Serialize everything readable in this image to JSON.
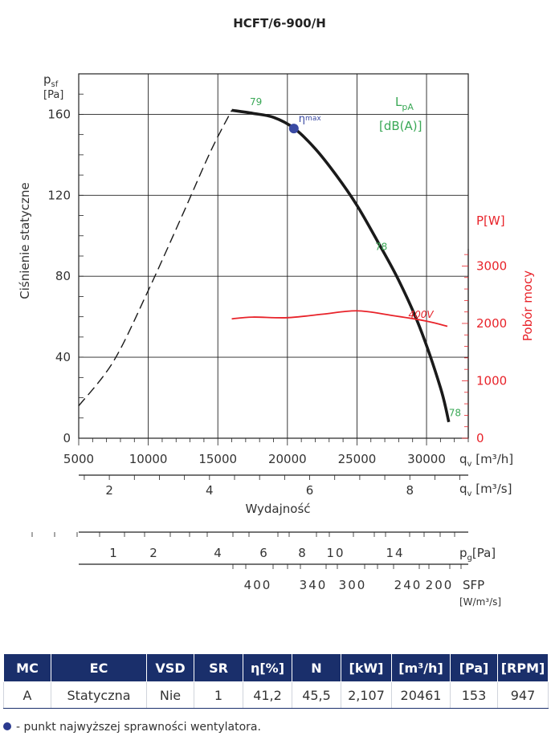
{
  "chart_data": {
    "type": "line",
    "title": "HCFT/6-900/H",
    "xlabel": "Wydajność",
    "ylabel": "Ciśnienie statyczne",
    "y2label": "Pobór mocy",
    "x_unit_h": "q",
    "x_unit_h_sub": "v",
    "x_unit_h_rest": " [m³/h]",
    "x_unit_s": "q",
    "x_unit_s_sub": "v",
    "x_unit_s_rest": " [m³/s]",
    "y_unit": "p",
    "y_unit_sub": "sf",
    "y_unit_rest": "[Pa]",
    "y2_unit": "P[W]",
    "sound_label": "L",
    "sound_label_sub": "pA",
    "sound_unit": "[dB(A)]",
    "eta_label": "η",
    "eta_sub": "max",
    "xlim": [
      5000,
      33000
    ],
    "ylim": [
      0,
      180
    ],
    "y2lim": [
      0,
      3300
    ],
    "x_ticks": [
      5000,
      10000,
      15000,
      20000,
      25000,
      30000
    ],
    "x_ticks_s": [
      2,
      4,
      6,
      8
    ],
    "y_ticks": [
      0,
      40,
      80,
      120,
      160
    ],
    "y2_ticks": [
      0,
      1000,
      2000,
      3000
    ],
    "series": [
      {
        "name": "Ciśnienie statyczne (praca)",
        "axis": "left",
        "style": "solid",
        "color": "#1a1a1a",
        "x": [
          16000,
          17500,
          19000,
          20500,
          22000,
          23500,
          25000,
          26500,
          28000,
          29500,
          31000,
          31600
        ],
        "y": [
          162,
          160.5,
          158.5,
          153,
          143,
          130,
          115,
          97,
          78,
          55,
          25,
          8
        ]
      },
      {
        "name": "Ciśnienie statyczne (niestabilna)",
        "axis": "left",
        "style": "dashed",
        "color": "#1a1a1a",
        "x": [
          5000,
          7500,
          10000,
          12500,
          14500,
          16000
        ],
        "y": [
          16,
          38,
          73,
          111,
          142,
          162
        ]
      },
      {
        "name": "400V",
        "axis": "right",
        "style": "solid",
        "color": "#e8232a",
        "x": [
          16000,
          17500,
          20000,
          22500,
          25000,
          27500,
          30000,
          31500
        ],
        "y": [
          2080,
          2110,
          2100,
          2160,
          2220,
          2140,
          2040,
          1950
        ]
      }
    ],
    "annotations": [
      {
        "text": "79",
        "x": 17300,
        "y": 164.5,
        "color": "#3aa856"
      },
      {
        "text": "78",
        "x": 26300,
        "y": 93,
        "color": "#3aa856"
      },
      {
        "text": "78",
        "x": 31600,
        "y": 11,
        "color": "#3aa856"
      },
      {
        "text": "400V",
        "x": 28700,
        "y": 2100,
        "color": "#e8232a",
        "axis": "right"
      }
    ],
    "eta_point": {
      "x": 20461,
      "y": 153,
      "color": "#3a4aa3"
    },
    "sfp_scale": {
      "pg_label": "p",
      "pg_sub": "g",
      "pg_unit": "[Pa]",
      "pg_ticks": [
        1,
        2,
        4,
        6,
        8,
        10,
        14
      ],
      "sfp_label": "SFP",
      "sfp_unit": "[W/m³/s]",
      "sfp_ticks": [
        400,
        340,
        300,
        240,
        200
      ]
    }
  },
  "table": {
    "headers": [
      "MC",
      "EC",
      "VSD",
      "SR",
      "η[%]",
      "N",
      "[kW]",
      "[m³/h]",
      "[Pa]",
      "[RPM]"
    ],
    "row": [
      "A",
      "Statyczna",
      "Nie",
      "1",
      "41,2",
      "45,5",
      "2,107",
      "20461",
      "153",
      "947"
    ]
  },
  "footnote": "- punkt najwyższej sprawności wentylatora."
}
